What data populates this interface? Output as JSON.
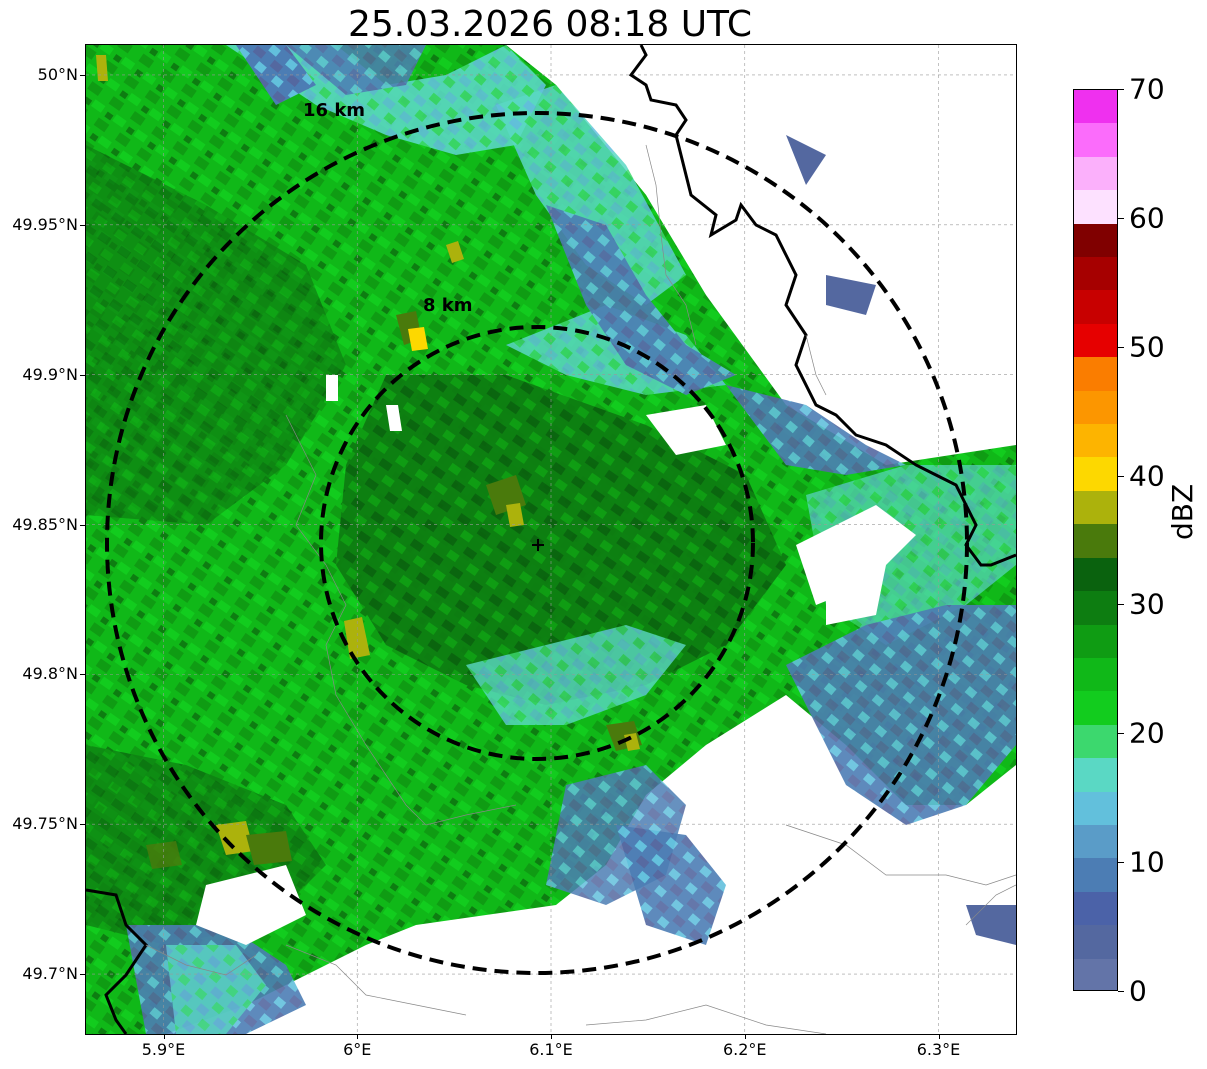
{
  "title": "25.03.2026 08:18 UTC",
  "map": {
    "lon_range": [
      5.86,
      6.34
    ],
    "lat_range": [
      49.68,
      50.01
    ],
    "radar_center": {
      "lon": 6.095,
      "lat": 49.843
    },
    "x_ticks": [
      {
        "value": 5.9,
        "label": "5.9°E"
      },
      {
        "value": 6.0,
        "label": "6°E"
      },
      {
        "value": 6.1,
        "label": "6.1°E"
      },
      {
        "value": 6.2,
        "label": "6.2°E"
      },
      {
        "value": 6.3,
        "label": "6.3°E"
      }
    ],
    "y_ticks": [
      {
        "value": 50.0,
        "label": "50°N"
      },
      {
        "value": 49.95,
        "label": "49.95°N"
      },
      {
        "value": 49.9,
        "label": "49.9°N"
      },
      {
        "value": 49.85,
        "label": "49.85°N"
      },
      {
        "value": 49.8,
        "label": "49.8°N"
      },
      {
        "value": 49.75,
        "label": "49.75°N"
      },
      {
        "value": 49.7,
        "label": "49.7°N"
      }
    ],
    "range_rings": [
      {
        "radius_km": 8,
        "label": "8 km"
      },
      {
        "radius_km": 16,
        "label": "16 km"
      }
    ],
    "center_marker": "+"
  },
  "colorbar": {
    "label": "dBZ",
    "min": 0,
    "max": 70,
    "ticks": [
      "0",
      "10",
      "20",
      "30",
      "40",
      "50",
      "60",
      "70"
    ],
    "colors": [
      "#6374a8",
      "#5468a0",
      "#4b62a8",
      "#4c7db4",
      "#5a9cc8",
      "#62c0dc",
      "#5ad8c4",
      "#3cd86e",
      "#12cc1e",
      "#10b818",
      "#0f9c13",
      "#0d7d11",
      "#0a620e",
      "#4a7a0c",
      "#acb20c",
      "#fdd800",
      "#fdb400",
      "#fc9600",
      "#fa7d00",
      "#e60000",
      "#c80000",
      "#a60000",
      "#800000",
      "#fde1ff",
      "#fbb0fb",
      "#fb6cfb",
      "#ef30ef"
    ]
  }
}
